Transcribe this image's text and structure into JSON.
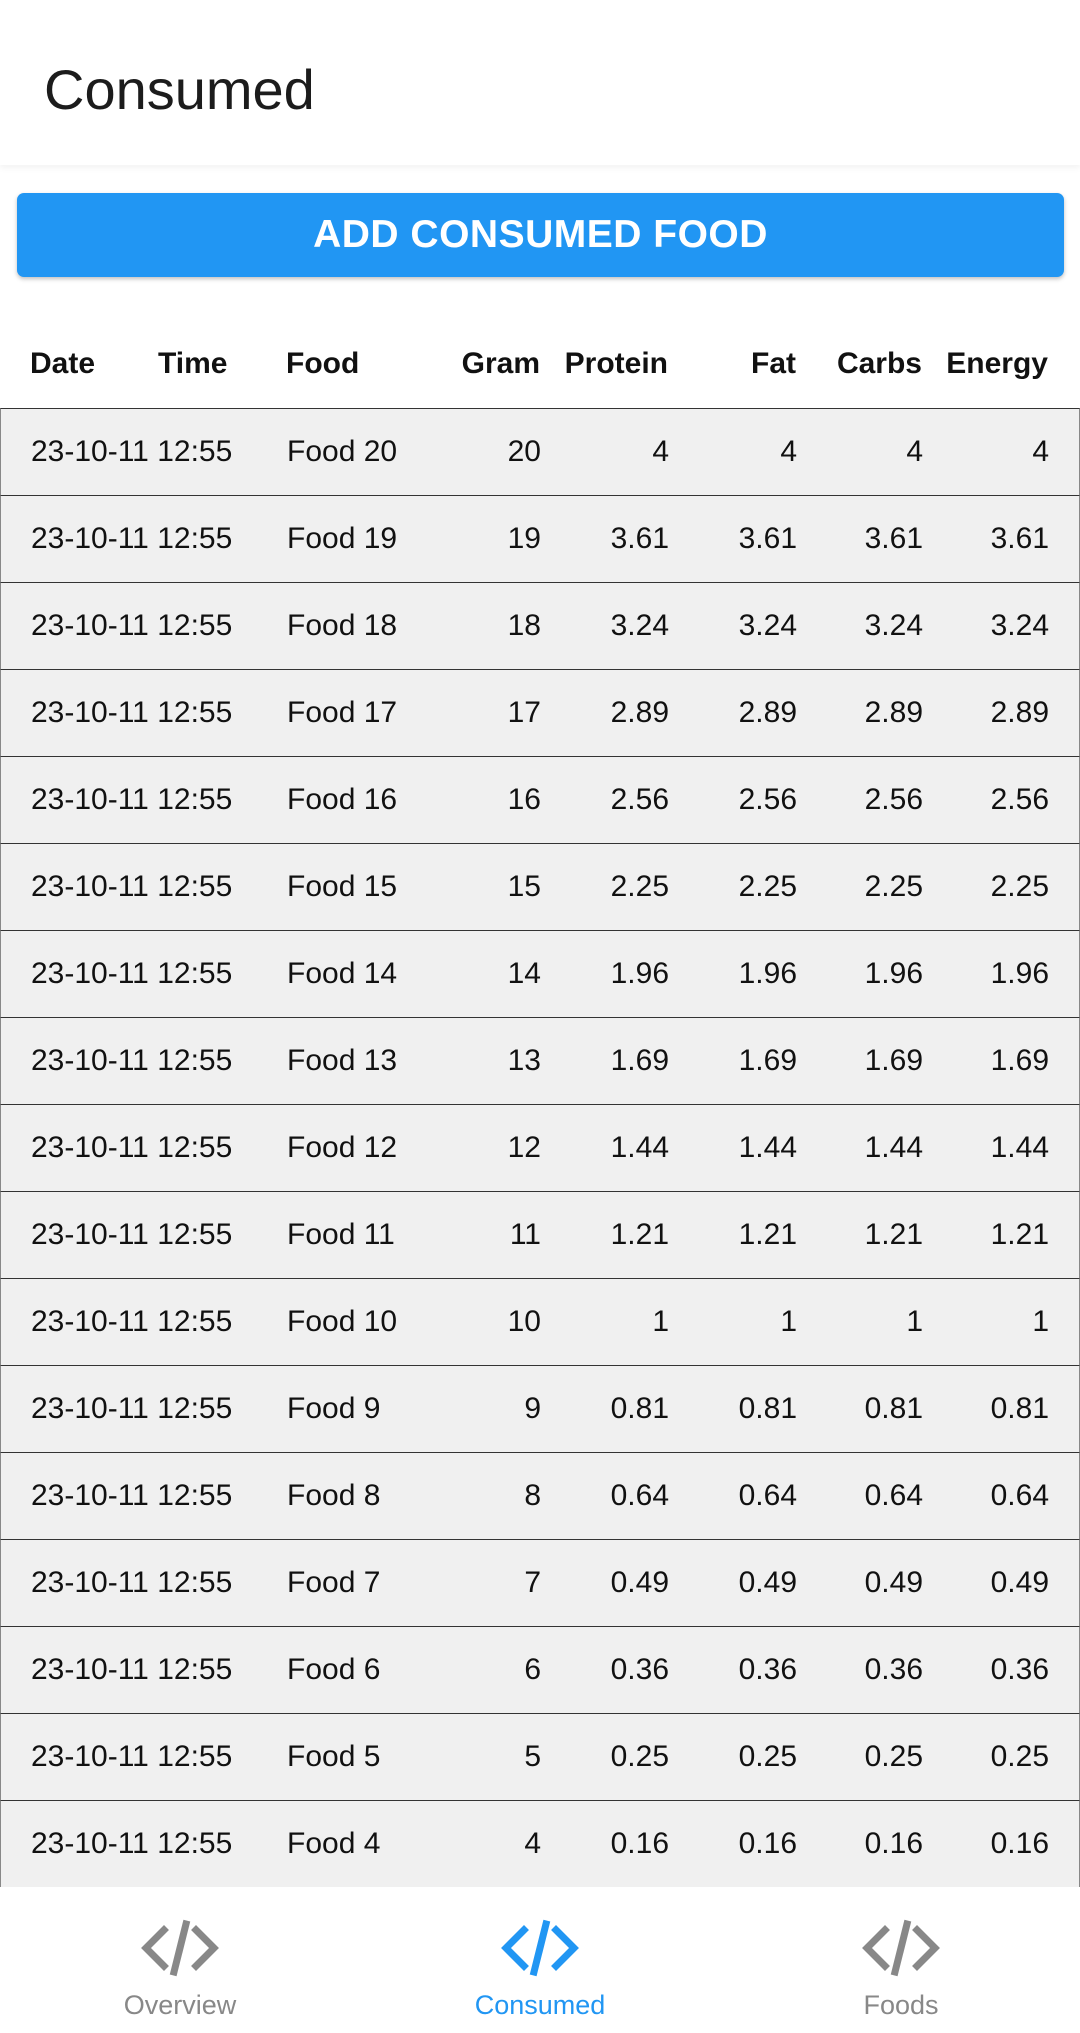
{
  "header": {
    "title": "Consumed"
  },
  "add_button": {
    "label": "ADD CONSUMED FOOD"
  },
  "colors": {
    "accent": "#2196f3",
    "inactive": "#888888",
    "row_bg": "#f0f0f0"
  },
  "table": {
    "columns": {
      "date": "Date",
      "time": "Time",
      "food": "Food",
      "gram": "Gram",
      "protein": "Protein",
      "fat": "Fat",
      "carbs": "Carbs",
      "energy": "Energy"
    },
    "rows": [
      {
        "datetime": "23-10-11 12:55",
        "food": "Food 20",
        "gram": "20",
        "protein": "4",
        "fat": "4",
        "carbs": "4",
        "energy": "4"
      },
      {
        "datetime": "23-10-11 12:55",
        "food": "Food 19",
        "gram": "19",
        "protein": "3.61",
        "fat": "3.61",
        "carbs": "3.61",
        "energy": "3.61"
      },
      {
        "datetime": "23-10-11 12:55",
        "food": "Food 18",
        "gram": "18",
        "protein": "3.24",
        "fat": "3.24",
        "carbs": "3.24",
        "energy": "3.24"
      },
      {
        "datetime": "23-10-11 12:55",
        "food": "Food 17",
        "gram": "17",
        "protein": "2.89",
        "fat": "2.89",
        "carbs": "2.89",
        "energy": "2.89"
      },
      {
        "datetime": "23-10-11 12:55",
        "food": "Food 16",
        "gram": "16",
        "protein": "2.56",
        "fat": "2.56",
        "carbs": "2.56",
        "energy": "2.56"
      },
      {
        "datetime": "23-10-11 12:55",
        "food": "Food 15",
        "gram": "15",
        "protein": "2.25",
        "fat": "2.25",
        "carbs": "2.25",
        "energy": "2.25"
      },
      {
        "datetime": "23-10-11 12:55",
        "food": "Food 14",
        "gram": "14",
        "protein": "1.96",
        "fat": "1.96",
        "carbs": "1.96",
        "energy": "1.96"
      },
      {
        "datetime": "23-10-11 12:55",
        "food": "Food 13",
        "gram": "13",
        "protein": "1.69",
        "fat": "1.69",
        "carbs": "1.69",
        "energy": "1.69"
      },
      {
        "datetime": "23-10-11 12:55",
        "food": "Food 12",
        "gram": "12",
        "protein": "1.44",
        "fat": "1.44",
        "carbs": "1.44",
        "energy": "1.44"
      },
      {
        "datetime": "23-10-11 12:55",
        "food": "Food 11",
        "gram": "11",
        "protein": "1.21",
        "fat": "1.21",
        "carbs": "1.21",
        "energy": "1.21"
      },
      {
        "datetime": "23-10-11 12:55",
        "food": "Food 10",
        "gram": "10",
        "protein": "1",
        "fat": "1",
        "carbs": "1",
        "energy": "1"
      },
      {
        "datetime": "23-10-11 12:55",
        "food": "Food 9",
        "gram": "9",
        "protein": "0.81",
        "fat": "0.81",
        "carbs": "0.81",
        "energy": "0.81"
      },
      {
        "datetime": "23-10-11 12:55",
        "food": "Food 8",
        "gram": "8",
        "protein": "0.64",
        "fat": "0.64",
        "carbs": "0.64",
        "energy": "0.64"
      },
      {
        "datetime": "23-10-11 12:55",
        "food": "Food 7",
        "gram": "7",
        "protein": "0.49",
        "fat": "0.49",
        "carbs": "0.49",
        "energy": "0.49"
      },
      {
        "datetime": "23-10-11 12:55",
        "food": "Food 6",
        "gram": "6",
        "protein": "0.36",
        "fat": "0.36",
        "carbs": "0.36",
        "energy": "0.36"
      },
      {
        "datetime": "23-10-11 12:55",
        "food": "Food 5",
        "gram": "5",
        "protein": "0.25",
        "fat": "0.25",
        "carbs": "0.25",
        "energy": "0.25"
      },
      {
        "datetime": "23-10-11 12:55",
        "food": "Food 4",
        "gram": "4",
        "protein": "0.16",
        "fat": "0.16",
        "carbs": "0.16",
        "energy": "0.16"
      }
    ]
  },
  "bottom_nav": {
    "items": [
      {
        "label": "Overview",
        "icon": "code-icon",
        "active": false
      },
      {
        "label": "Consumed",
        "icon": "code-icon",
        "active": true
      },
      {
        "label": "Foods",
        "icon": "code-icon",
        "active": false
      }
    ]
  }
}
